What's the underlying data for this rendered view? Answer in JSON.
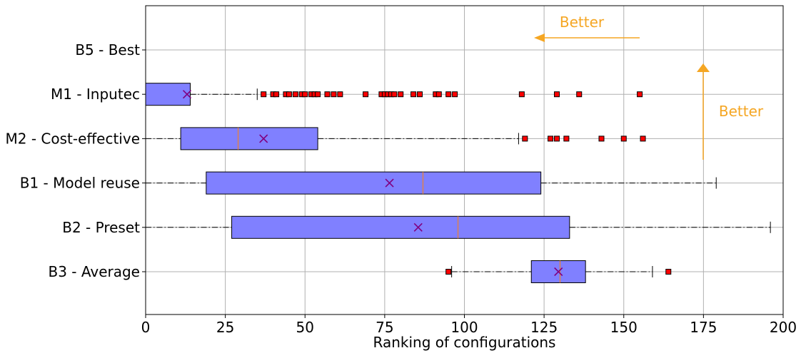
{
  "chart_data": {
    "type": "boxplot",
    "orientation": "horizontal",
    "title": "",
    "xlabel": "Ranking of configurations",
    "ylabel": "",
    "xlim": [
      0,
      200
    ],
    "x_ticks": [
      0,
      25,
      50,
      75,
      100,
      125,
      150,
      175,
      200
    ],
    "grid": true,
    "categories": [
      "B5 - Best",
      "M1 - Inputec",
      "M2 - Cost-effective",
      "B1 - Model reuse",
      "B2 - Preset",
      "B3 - Average"
    ],
    "boxes": [
      {
        "label": "B5 - Best",
        "min": null,
        "q1": null,
        "median": null,
        "q3": null,
        "max": null,
        "mean": null,
        "outliers": []
      },
      {
        "label": "M1 - Inputec",
        "min": 0,
        "q1": 0,
        "median": 0,
        "q3": 14,
        "max": 35,
        "mean": 13,
        "outliers": [
          37,
          40,
          41,
          44,
          45,
          47,
          49,
          50,
          52,
          53,
          54,
          57,
          59,
          61,
          69,
          74,
          75,
          76,
          77,
          78,
          80,
          84,
          86,
          91,
          92,
          95,
          97,
          118,
          129,
          136,
          155
        ]
      },
      {
        "label": "M2 - Cost-effective",
        "min": 0,
        "q1": 11,
        "median": 29,
        "q3": 54,
        "max": 117,
        "mean": 37,
        "outliers": [
          119,
          127,
          129,
          132,
          143,
          150,
          156
        ]
      },
      {
        "label": "B1 - Model reuse",
        "min": 0,
        "q1": 19,
        "median": 87,
        "q3": 124,
        "max": 179,
        "mean": 76.5,
        "outliers": []
      },
      {
        "label": "B2 - Preset",
        "min": 0,
        "q1": 27,
        "median": 98,
        "q3": 133,
        "max": 196,
        "mean": 85.5,
        "outliers": []
      },
      {
        "label": "B3 - Average",
        "min": 96,
        "q1": 121,
        "median": 130,
        "q3": 138,
        "max": 159,
        "mean": 129.5,
        "outliers": [
          95,
          164
        ]
      }
    ],
    "annotations": [
      {
        "text": "Better",
        "direction": "left"
      },
      {
        "text": "Better",
        "direction": "up"
      }
    ],
    "colors": {
      "box_fill": "#8080ff",
      "median": "#ff7f0e",
      "mean_marker": "#800080",
      "outlier_fill": "#ff0000",
      "annotation": "#f5a623",
      "grid": "#b0b0b0"
    }
  }
}
